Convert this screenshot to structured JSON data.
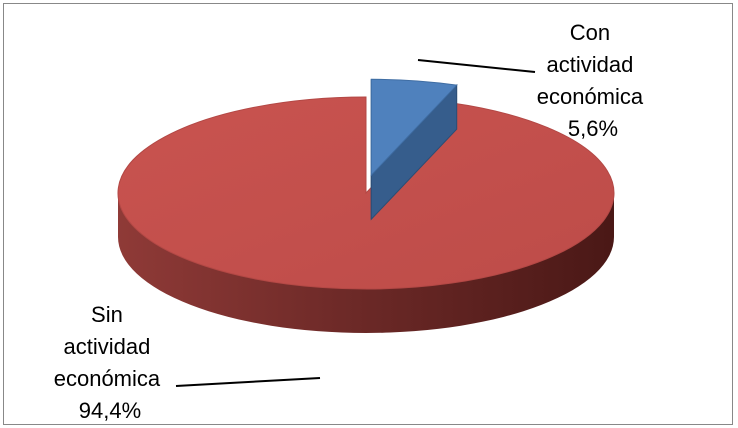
{
  "chart_data": {
    "type": "pie",
    "title": "",
    "style": "3d-exploded",
    "legend": "none",
    "slices": [
      {
        "label_lines": [
          "Con",
          "actividad",
          "económica"
        ],
        "value_text": "5,6%",
        "value": 5.6,
        "color": "#4F81BD",
        "exploded": true
      },
      {
        "label_lines": [
          "Sin",
          "actividad",
          "económica"
        ],
        "value_text": "94,4%",
        "value": 94.4,
        "color": "#C0504D",
        "exploded": false
      }
    ]
  }
}
